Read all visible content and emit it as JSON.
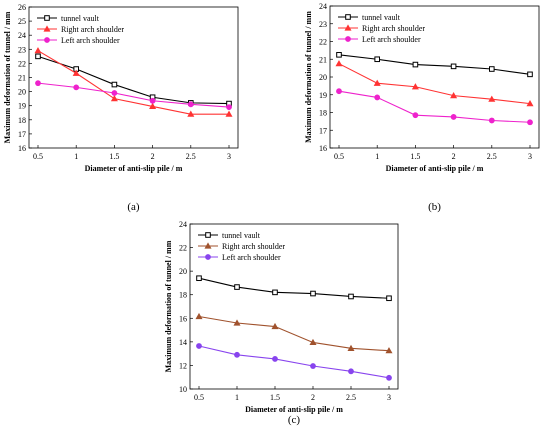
{
  "chart_data": [
    {
      "type": "line",
      "panel_label": "(a)",
      "xlabel": "Diameter of anti-slip pile / m",
      "ylabel": "Maximum deformation of tunnel / mm",
      "x": [
        0.5,
        1,
        1.5,
        2,
        2.5,
        3
      ],
      "x_tick_labels": [
        "0.5",
        "1",
        "1.5",
        "2",
        "2.5",
        "3"
      ],
      "xlim": [
        0.5,
        3
      ],
      "ylim": [
        16,
        26
      ],
      "y_ticks": [
        16,
        17,
        18,
        19,
        20,
        21,
        22,
        23,
        24,
        25,
        26
      ],
      "legend_position": "top-left",
      "grid": false,
      "series": [
        {
          "name": "tunnel vault",
          "values": [
            22.5,
            21.6,
            20.5,
            19.6,
            19.2,
            19.15
          ],
          "color": "#000000",
          "marker": "square"
        },
        {
          "name": "Right arch shoulder",
          "values": [
            22.9,
            21.3,
            19.5,
            18.95,
            18.4,
            18.4
          ],
          "color": "#ff3333",
          "marker": "triangle"
        },
        {
          "name": "Left arch shoulder",
          "values": [
            20.6,
            20.3,
            19.9,
            19.35,
            19.1,
            18.9
          ],
          "color": "#ee22cc",
          "marker": "circle"
        }
      ]
    },
    {
      "type": "line",
      "panel_label": "(b)",
      "xlabel": "Diameter of anti-slip pile / m",
      "ylabel": "Maximum deformation of tunnel / mm",
      "x": [
        0.5,
        1,
        1.5,
        2,
        2.5,
        3
      ],
      "x_tick_labels": [
        "0.5",
        "1",
        "1.5",
        "2",
        "2.5",
        "3"
      ],
      "xlim": [
        0.5,
        3
      ],
      "ylim": [
        16,
        24
      ],
      "y_ticks": [
        16,
        17,
        18,
        19,
        20,
        21,
        22,
        23,
        24
      ],
      "legend_position": "top-left",
      "grid": false,
      "series": [
        {
          "name": "tunnel vault",
          "values": [
            21.25,
            21.0,
            20.7,
            20.6,
            20.45,
            20.15
          ],
          "color": "#000000",
          "marker": "square"
        },
        {
          "name": "Right arch shoulder",
          "values": [
            20.75,
            19.65,
            19.45,
            18.95,
            18.75,
            18.5
          ],
          "color": "#ff3333",
          "marker": "triangle"
        },
        {
          "name": "Left arch shoulder",
          "values": [
            19.2,
            18.85,
            17.85,
            17.75,
            17.55,
            17.45
          ],
          "color": "#ee22cc",
          "marker": "circle"
        }
      ]
    },
    {
      "type": "line",
      "panel_label": "(c)",
      "xlabel": "Diameter of anti-slip pile / m",
      "ylabel": "Maximum deformation of tunnel / mm",
      "x": [
        0.5,
        1,
        1.5,
        2,
        2.5,
        3
      ],
      "x_tick_labels": [
        "0.5",
        "1",
        "1.5",
        "2",
        "2.5",
        "3"
      ],
      "xlim": [
        0.5,
        3
      ],
      "ylim": [
        10,
        24
      ],
      "y_ticks": [
        10,
        12,
        14,
        16,
        18,
        20,
        22,
        24
      ],
      "legend_position": "top-left",
      "grid": false,
      "series": [
        {
          "name": "tunnel vault",
          "values": [
            19.4,
            18.65,
            18.2,
            18.1,
            17.85,
            17.7
          ],
          "color": "#000000",
          "marker": "square"
        },
        {
          "name": "Right arch shoulder",
          "values": [
            16.15,
            15.6,
            15.3,
            13.95,
            13.45,
            13.25
          ],
          "color": "#a0522d",
          "marker": "triangle"
        },
        {
          "name": "Left arch shoulder",
          "values": [
            13.65,
            12.9,
            12.55,
            11.95,
            11.5,
            10.95
          ],
          "color": "#8844ee",
          "marker": "circle"
        }
      ]
    }
  ]
}
